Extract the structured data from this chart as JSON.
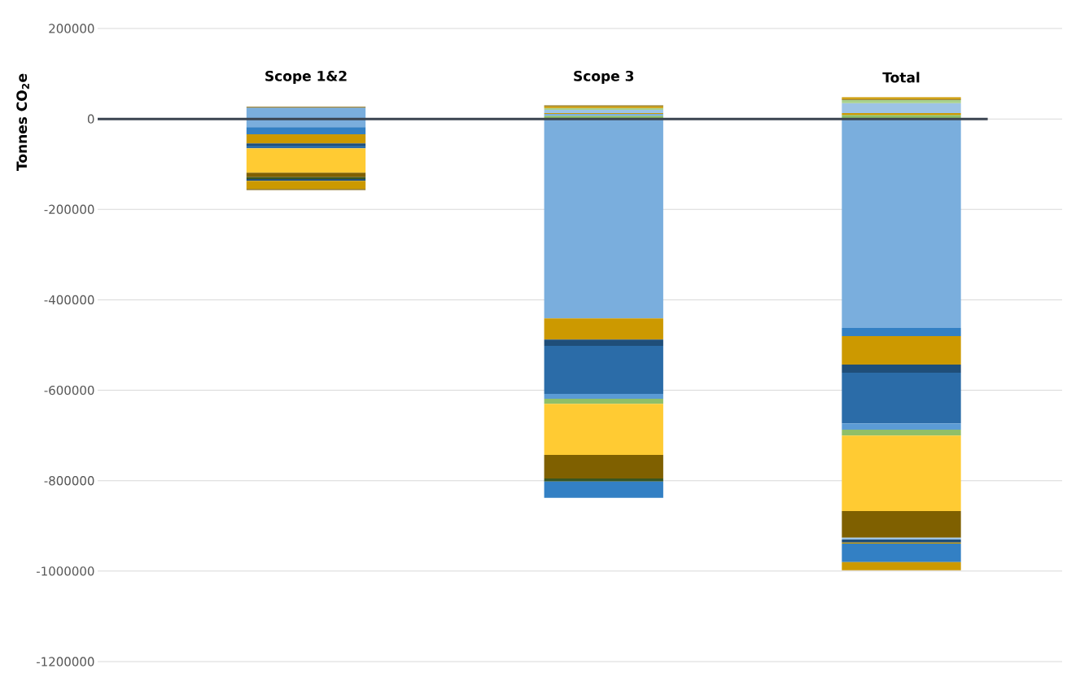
{
  "chart_data": {
    "type": "bar",
    "stacked": true,
    "ylabel": "Tonnes CO$_{2}$e",
    "categories": [
      "Scope 1&2",
      "Scope 3",
      "Total"
    ],
    "ylim": [
      -1200000,
      200000
    ],
    "yticks": [
      -1200000,
      -1000000,
      -800000,
      -600000,
      -400000,
      -200000,
      0,
      200000
    ],
    "grid": "y",
    "series": [
      {
        "color": "#7aaedd",
        "values": [
          -18000,
          -441000,
          -462000
        ]
      },
      {
        "color": "#3380c4",
        "values": [
          -16000,
          null,
          -18000
        ]
      },
      {
        "color": "#cc9900",
        "values": [
          -20000,
          -47000,
          -63000
        ]
      },
      {
        "color": "#1f4e79",
        "values": [
          -5000,
          -14000,
          -18000
        ]
      },
      {
        "color": "#2b6ca8",
        "values": [
          -6000,
          -106000,
          -112000
        ]
      },
      {
        "color": "#5b9bd5",
        "values": [
          null,
          -11000,
          -14000
        ]
      },
      {
        "color": "#8fbf68",
        "values": [
          null,
          -11000,
          -13000
        ]
      },
      {
        "color": "#ffcb33",
        "values": [
          -54000,
          -113000,
          -167000
        ]
      },
      {
        "color": "#7f6000",
        "values": [
          -10000,
          -52000,
          -59000
        ]
      },
      {
        "color": "#9dc3e6",
        "values": [
          null,
          null,
          -4000
        ]
      },
      {
        "color": "#375623",
        "values": [
          -4000,
          -7000,
          null
        ]
      },
      {
        "color": "#1f4e79",
        "values": [
          -4000,
          null,
          -7000
        ]
      },
      {
        "color": "#cc9900",
        "values": [
          null,
          null,
          -2000
        ]
      },
      {
        "color": "#3380c4",
        "values": [
          null,
          -36000,
          -41000
        ]
      },
      {
        "color": "#cc9900",
        "values": [
          -18000,
          null,
          -18000
        ]
      },
      {
        "color": "#7f6000",
        "values": [
          -2000,
          null,
          null
        ]
      },
      {
        "color": "#8fbf68",
        "values": [
          null,
          7000,
          9000
        ]
      },
      {
        "color": "#7aaedd",
        "values": [
          25000,
          4000,
          null
        ]
      },
      {
        "color": "#cc9900",
        "values": [
          null,
          2000,
          4000
        ]
      },
      {
        "color": "#9dc3e6",
        "values": [
          null,
          7000,
          22000
        ]
      },
      {
        "color": "#a9d18e",
        "values": [
          null,
          4000,
          7000
        ]
      },
      {
        "color": "#cc9900",
        "values": [
          null,
          4000,
          null
        ]
      },
      {
        "color": "#7f6000",
        "values": [
          2000,
          2000,
          2000
        ]
      },
      {
        "color": "#cc9900",
        "values": [
          null,
          null,
          4000
        ]
      }
    ]
  }
}
